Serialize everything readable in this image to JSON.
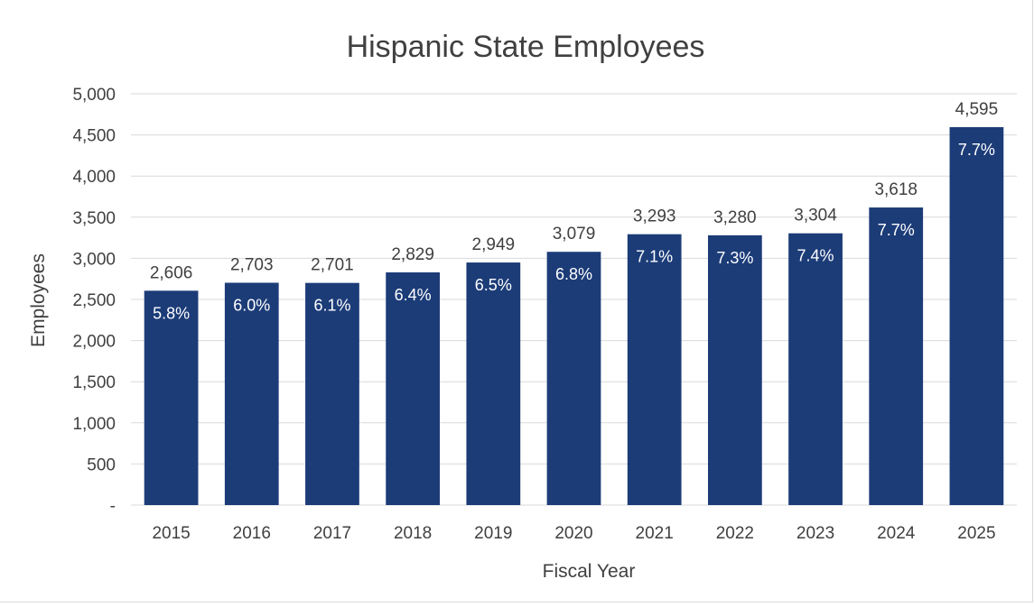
{
  "chart_data": {
    "type": "bar",
    "title": "Hispanic State Employees",
    "xlabel": "Fiscal Year",
    "ylabel": "Employees",
    "categories": [
      "2015",
      "2016",
      "2017",
      "2018",
      "2019",
      "2020",
      "2021",
      "2022",
      "2023",
      "2024",
      "2025"
    ],
    "series": [
      {
        "values": [
          2606,
          2703,
          2701,
          2829,
          2949,
          3079,
          3293,
          3280,
          3304,
          3618,
          4595
        ],
        "value_labels": [
          "2,606",
          "2,703",
          "2,701",
          "2,829",
          "2,949",
          "3,079",
          "3,293",
          "3,280",
          "3,304",
          "3,618",
          "4,595"
        ],
        "percent_labels": [
          "5.8%",
          "6.0%",
          "6.1%",
          "6.4%",
          "6.5%",
          "6.8%",
          "7.1%",
          "7.3%",
          "7.4%",
          "7.7%",
          "7.7%"
        ],
        "color": "#1c3c78"
      }
    ],
    "ylim": [
      0,
      5000
    ],
    "yticks": [
      0,
      500,
      1000,
      1500,
      2000,
      2500,
      3000,
      3500,
      4000,
      4500,
      5000
    ],
    "ytick_labels": [
      "-",
      "500",
      "1,000",
      "1,500",
      "2,000",
      "2,500",
      "3,000",
      "3,500",
      "4,000",
      "4,500",
      "5,000"
    ],
    "grid": true,
    "legend": "none"
  },
  "colors": {
    "bar": "#1c3c78",
    "grid": "#d9d9d9",
    "text": "#404040",
    "inner_label": "#ffffff"
  }
}
